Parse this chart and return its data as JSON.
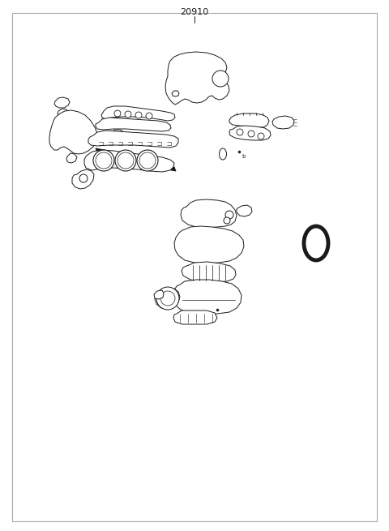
{
  "title": "20910",
  "bg_color": "#ffffff",
  "border_color": "#aaaaaa",
  "line_color": "#1a1a1a",
  "fig_width": 4.8,
  "fig_height": 6.55,
  "dpi": 100
}
